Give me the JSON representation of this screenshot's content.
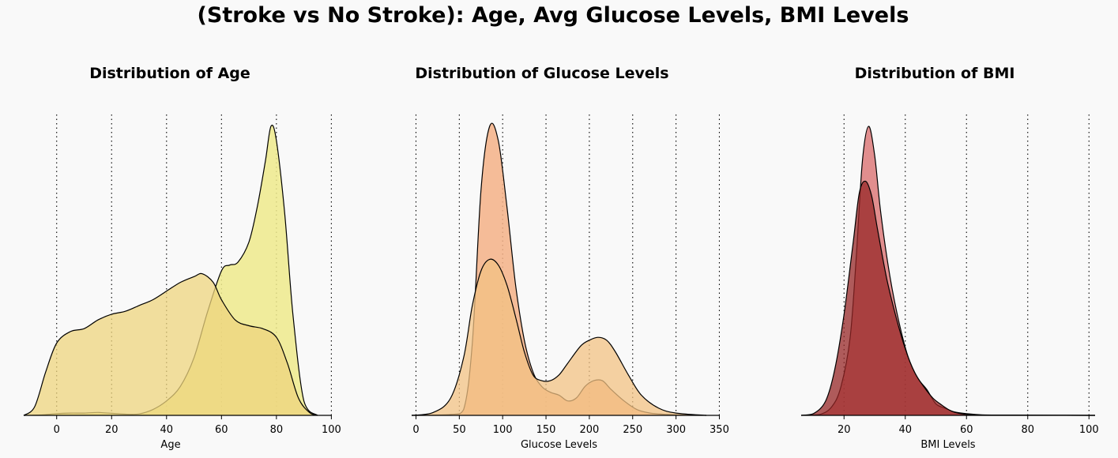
{
  "title": "(Stroke vs No Stroke): Age, Avg Glucose Levels, BMI Levels",
  "chart_data": [
    {
      "type": "area",
      "title": "Distribution of Age",
      "xlabel": "Age",
      "ylabel": "",
      "xlim": [
        -12,
        95
      ],
      "ylim": [
        0,
        1.0
      ],
      "xticks": [
        0,
        20,
        40,
        60,
        80,
        100
      ],
      "grid": "vertical dotted",
      "series": [
        {
          "color": "#eeea8c",
          "alpha": 0.85,
          "x": [
            -12,
            -5,
            0,
            5,
            10,
            15,
            20,
            25,
            30,
            35,
            40,
            45,
            50,
            55,
            60,
            63,
            66,
            70,
            73,
            76,
            78,
            80,
            83,
            86,
            90,
            95
          ],
          "y": [
            0,
            0.002,
            0.006,
            0.008,
            0.008,
            0.01,
            0.007,
            0.004,
            0.005,
            0.02,
            0.05,
            0.1,
            0.2,
            0.36,
            0.5,
            0.52,
            0.53,
            0.6,
            0.72,
            0.88,
            1.0,
            0.95,
            0.7,
            0.35,
            0.05,
            0
          ]
        },
        {
          "color": "#eed47e",
          "alpha": 0.75,
          "x": [
            -12,
            -8,
            -4,
            0,
            5,
            10,
            15,
            20,
            25,
            30,
            35,
            40,
            45,
            50,
            53,
            57,
            60,
            65,
            70,
            75,
            80,
            84,
            88,
            92,
            95
          ],
          "y": [
            0,
            0.03,
            0.15,
            0.25,
            0.29,
            0.3,
            0.33,
            0.35,
            0.36,
            0.38,
            0.4,
            0.43,
            0.46,
            0.48,
            0.49,
            0.46,
            0.4,
            0.33,
            0.31,
            0.3,
            0.27,
            0.18,
            0.06,
            0.01,
            0
          ]
        }
      ]
    },
    {
      "type": "area",
      "title": "Distribution of Glucose Levels",
      "xlabel": "Glucose Levels",
      "ylabel": "",
      "xlim": [
        -5,
        335
      ],
      "ylim": [
        0,
        1.0
      ],
      "xticks": [
        0,
        50,
        100,
        150,
        200,
        250,
        300,
        350
      ],
      "grid": "vertical dotted",
      "series": [
        {
          "color": "#f4b187",
          "alpha": 0.85,
          "x": [
            -5,
            40,
            55,
            65,
            75,
            85,
            95,
            105,
            115,
            125,
            135,
            145,
            155,
            165,
            175,
            185,
            195,
            205,
            215,
            225,
            240,
            255,
            270,
            290,
            310,
            335
          ],
          "y": [
            0,
            0.003,
            0.02,
            0.25,
            0.78,
            1.0,
            0.95,
            0.72,
            0.45,
            0.26,
            0.15,
            0.1,
            0.08,
            0.07,
            0.05,
            0.06,
            0.1,
            0.12,
            0.12,
            0.09,
            0.05,
            0.02,
            0.008,
            0.003,
            0.001,
            0
          ]
        },
        {
          "color": "#f2c183",
          "alpha": 0.75,
          "x": [
            -5,
            20,
            40,
            55,
            65,
            75,
            85,
            95,
            105,
            115,
            125,
            135,
            145,
            155,
            165,
            175,
            190,
            200,
            210,
            220,
            230,
            245,
            260,
            280,
            300,
            335
          ],
          "y": [
            0,
            0.01,
            0.06,
            0.2,
            0.38,
            0.5,
            0.54,
            0.52,
            0.45,
            0.34,
            0.22,
            0.14,
            0.12,
            0.12,
            0.14,
            0.18,
            0.24,
            0.26,
            0.27,
            0.26,
            0.22,
            0.14,
            0.07,
            0.025,
            0.008,
            0
          ]
        }
      ]
    },
    {
      "type": "area",
      "title": "Distribution of BMI",
      "xlabel": "BMI Levels",
      "ylabel": "",
      "xlim": [
        6,
        102
      ],
      "ylim": [
        0,
        1.0
      ],
      "xticks": [
        20,
        40,
        60,
        80,
        100
      ],
      "grid": "vertical dotted",
      "series": [
        {
          "color": "#d86a6a",
          "alpha": 0.75,
          "x": [
            6,
            12,
            16,
            19,
            22,
            24,
            26,
            28,
            30,
            32,
            35,
            38,
            41,
            44,
            47,
            50,
            53,
            56,
            60,
            65,
            75,
            90,
            102
          ],
          "y": [
            0,
            0.003,
            0.03,
            0.1,
            0.27,
            0.55,
            0.88,
            1.0,
            0.9,
            0.7,
            0.48,
            0.32,
            0.2,
            0.13,
            0.09,
            0.04,
            0.025,
            0.012,
            0.006,
            0.002,
            0.001,
            0.0005,
            0
          ]
        },
        {
          "color": "#962626",
          "alpha": 0.75,
          "x": [
            6,
            10,
            14,
            17,
            20,
            23,
            25,
            27,
            29,
            31,
            34,
            37,
            40,
            43,
            46,
            49,
            52,
            55,
            58,
            62,
            70,
            85,
            102
          ],
          "y": [
            0,
            0.006,
            0.05,
            0.16,
            0.35,
            0.6,
            0.77,
            0.81,
            0.76,
            0.64,
            0.47,
            0.34,
            0.23,
            0.15,
            0.1,
            0.06,
            0.035,
            0.015,
            0.006,
            0.002,
            0.001,
            0.0005,
            0
          ]
        }
      ]
    }
  ]
}
